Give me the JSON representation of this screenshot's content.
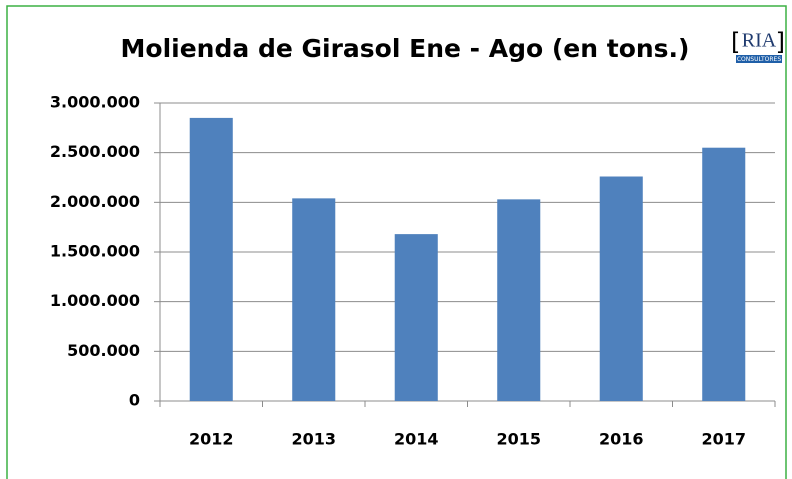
{
  "chart_data": {
    "type": "bar",
    "title": "Molienda de Girasol Ene - Ago (en tons.)",
    "logo": {
      "text": "RIA",
      "subtitle": "CONSULTORES"
    },
    "categories": [
      "2012",
      "2013",
      "2014",
      "2015",
      "2016",
      "2017"
    ],
    "values": [
      2850000,
      2040000,
      1680000,
      2030000,
      2260000,
      2550000
    ],
    "color": "#4f81bd",
    "ylim": [
      0,
      3000000
    ],
    "yticks": [
      0,
      {
        "value": 500000,
        "label": "500.000"
      },
      {
        "value": 1000000,
        "label": "1.000.000"
      },
      {
        "value": 1500000,
        "label": "1.500.000"
      },
      {
        "value": 2000000,
        "label": "2.000.000"
      },
      {
        "value": 2500000,
        "label": "2.500.000"
      },
      {
        "value": 3000000,
        "label": "3.000.000"
      }
    ],
    "grid": true
  }
}
